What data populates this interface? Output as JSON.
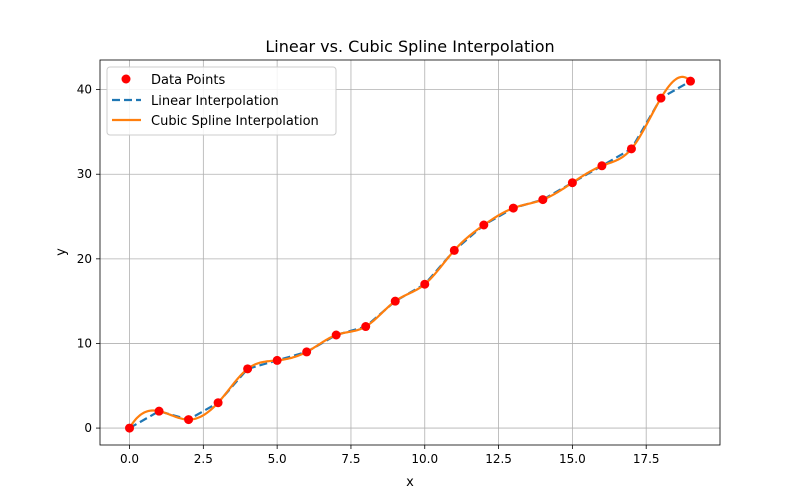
{
  "chart_data": {
    "type": "line",
    "title": "Linear vs. Cubic Spline Interpolation",
    "xlabel": "x",
    "ylabel": "y",
    "xlim": [
      -1.0,
      20.0
    ],
    "ylim": [
      -2.0,
      43.5
    ],
    "xticks": [
      0.0,
      2.5,
      5.0,
      7.5,
      10.0,
      12.5,
      15.0,
      17.5
    ],
    "xtick_labels": [
      "0.0",
      "2.5",
      "5.0",
      "7.5",
      "10.0",
      "12.5",
      "15.0",
      "17.5"
    ],
    "yticks": [
      0,
      10,
      20,
      30,
      40
    ],
    "ytick_labels": [
      "0",
      "10",
      "20",
      "30",
      "40"
    ],
    "grid": true,
    "legend_position": "top-left",
    "x": [
      0,
      1,
      2,
      3,
      4,
      5,
      6,
      7,
      8,
      9,
      10,
      11,
      12,
      13,
      14,
      15,
      16,
      17,
      18,
      19
    ],
    "y": [
      0,
      2,
      1,
      3,
      7,
      8,
      9,
      11,
      12,
      15,
      17,
      21,
      24,
      26,
      27,
      29,
      31,
      33,
      39,
      41
    ],
    "series": [
      {
        "name": "Data Points",
        "kind": "scatter",
        "color": "#ff0000"
      },
      {
        "name": "Linear Interpolation",
        "kind": "line-dashed",
        "color": "#1f77b4"
      },
      {
        "name": "Cubic Spline Interpolation",
        "kind": "line-spline",
        "color": "#ff7f0e"
      }
    ]
  }
}
